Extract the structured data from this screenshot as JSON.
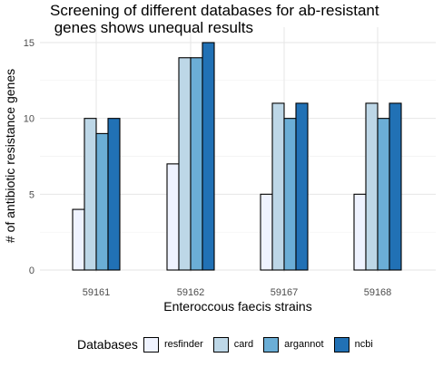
{
  "chart_data": {
    "type": "bar",
    "title": "Screening of different databases for ab-resistant\n genes shows unequal results",
    "xlabel": "Enteroccous faecis strains",
    "ylabel": "# of antibiotic resistance genes",
    "categories": [
      "59161",
      "59162",
      "59167",
      "59168"
    ],
    "ylim": [
      0,
      15
    ],
    "yticks": [
      0,
      5,
      10,
      15
    ],
    "grid": true,
    "legend_position": "bottom",
    "legend_title": "Databases",
    "series": [
      {
        "name": "resfinder",
        "color": "#EFF3FF",
        "values": [
          4,
          7,
          5,
          5
        ]
      },
      {
        "name": "card",
        "color": "#BDD7E7",
        "values": [
          10,
          14,
          11,
          11
        ]
      },
      {
        "name": "argannot",
        "color": "#6BAED6",
        "values": [
          9,
          14,
          10,
          10
        ]
      },
      {
        "name": "ncbi",
        "color": "#2171B5",
        "values": [
          10,
          15,
          11,
          11
        ]
      }
    ]
  }
}
